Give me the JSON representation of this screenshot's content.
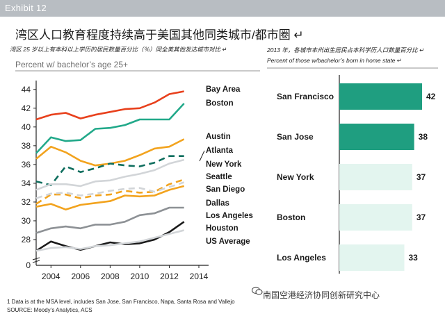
{
  "header": {
    "exhibit": "Exhibit 12"
  },
  "title": "湾区人口教育程度持续高于美国其他同类城市/都市圈 ↵",
  "subtitle_left": "湾区 25 岁以上有本科以上学历的居民数量百分比（％）同全美其他发达城市对比 ↵",
  "subtitle_right_1": "2013 年，各城市本州出生居民占本科学历人口数量百分比 ↵",
  "subtitle_right_2": "Percent of those w/bachelor’s born in home state ↵",
  "unit_left": "Percent w/ bachelor’s age 25+",
  "footnote": "1 Data is at the MSA level, includes San Jose, San Francisco, Napa, Santa Rosa and Vallejo",
  "source": "SOURCE: Moody’s Analytics, ACS",
  "watermark": "南国空港经济协同创新研究中心",
  "chart_data": [
    {
      "type": "line",
      "x": [
        2003,
        2004,
        2005,
        2006,
        2007,
        2008,
        2009,
        2010,
        2011,
        2012,
        2013
      ],
      "xticks": [
        2004,
        2006,
        2008,
        2010,
        2012,
        2014
      ],
      "yticks": [
        28,
        30,
        32,
        34,
        36,
        38,
        40,
        42,
        44
      ],
      "ylim": [
        26,
        44.5
      ],
      "xlim": [
        2003,
        2014
      ],
      "y_axis_break": true,
      "series": [
        {
          "name": "Bay Area",
          "color": "#e8401c",
          "dash": "solid",
          "values": [
            40.8,
            41.3,
            41.5,
            40.9,
            41.3,
            41.6,
            41.9,
            42.0,
            42.6,
            43.5,
            43.8
          ]
        },
        {
          "name": "Boston",
          "color": "#22a98a",
          "dash": "solid",
          "values": [
            37.2,
            38.9,
            38.5,
            38.6,
            39.8,
            39.9,
            40.2,
            40.8,
            40.8,
            40.8,
            42.5
          ]
        },
        {
          "name": "Austin",
          "color": "#f2a31e",
          "dash": "solid",
          "values": [
            36.6,
            37.9,
            37.3,
            36.4,
            35.9,
            36.1,
            36.4,
            37.0,
            37.7,
            37.9,
            38.7
          ]
        },
        {
          "name": "Atlanta",
          "color": "#0f6e5e",
          "dash": "dashed",
          "values": [
            34.2,
            33.8,
            35.8,
            35.2,
            35.6,
            36.1,
            35.9,
            35.8,
            36.2,
            36.9,
            36.9
          ]
        },
        {
          "name": "New York",
          "color": "#d2d5d8",
          "dash": "solid",
          "values": [
            33.3,
            33.9,
            33.9,
            33.7,
            34.2,
            34.3,
            34.7,
            35.0,
            35.4,
            36.1,
            36.5
          ]
        },
        {
          "name": "Seattle",
          "color": "#f2a31e",
          "dash": "dashed",
          "values": [
            31.8,
            32.8,
            32.8,
            32.4,
            32.7,
            32.8,
            33.2,
            33.0,
            33.1,
            33.9,
            34.4
          ]
        },
        {
          "name": "San Diego",
          "color": "#d2d5d8",
          "dash": "dashed",
          "values": [
            32.4,
            32.9,
            33.0,
            32.7,
            32.9,
            33.2,
            33.4,
            33.5,
            33.1,
            33.6,
            34.1
          ]
        },
        {
          "name": "Dallas",
          "color": "#f2a31e",
          "dash": "solid",
          "values": [
            31.5,
            31.8,
            31.2,
            31.7,
            31.9,
            32.1,
            32.7,
            32.6,
            32.7,
            33.3,
            33.7
          ]
        },
        {
          "name": "Los Angeles",
          "color": "#8d9195",
          "dash": "solid",
          "values": [
            28.7,
            29.2,
            29.4,
            29.2,
            29.6,
            29.6,
            29.9,
            30.6,
            30.8,
            31.4,
            31.4
          ]
        },
        {
          "name": "Houston",
          "color": "#1a1a1a",
          "dash": "solid",
          "values": [
            26.8,
            27.8,
            27.3,
            26.9,
            27.3,
            27.7,
            27.5,
            27.6,
            28.0,
            28.8,
            29.9
          ]
        },
        {
          "name": "US Average",
          "color": "#d2d5d8",
          "dash": "solid",
          "values": [
            26.8,
            27.1,
            27.2,
            27.0,
            27.3,
            27.4,
            27.6,
            27.8,
            28.2,
            28.6,
            29.0
          ]
        }
      ]
    },
    {
      "type": "bar",
      "orientation": "horizontal",
      "categories": [
        "San Francisco",
        "San Jose",
        "New York",
        "Boston",
        "Los Angeles"
      ],
      "values": [
        42,
        38,
        37,
        37,
        33
      ],
      "colors": [
        "#1f9e80",
        "#1f9e80",
        "#e3f5ef",
        "#e3f5ef",
        "#e3f5ef"
      ],
      "xlim": [
        0,
        48
      ]
    }
  ]
}
